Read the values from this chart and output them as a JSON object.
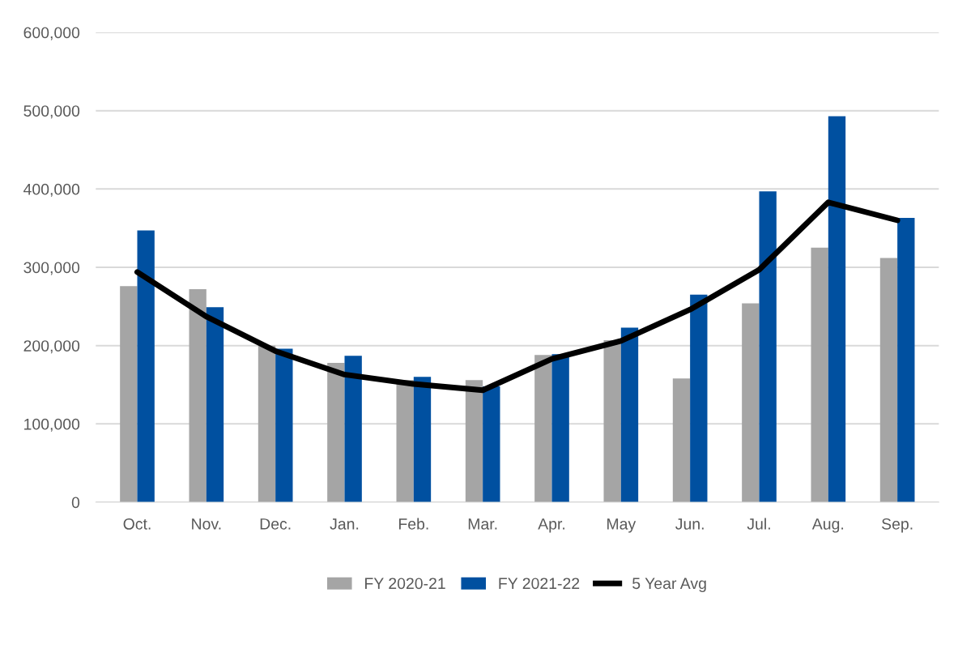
{
  "chart_data": {
    "type": "bar",
    "categories": [
      "Oct.",
      "Nov.",
      "Dec.",
      "Jan.",
      "Feb.",
      "Mar.",
      "Apr.",
      "May",
      "Jun.",
      "Jul.",
      "Aug.",
      "Sep."
    ],
    "series": [
      {
        "name": "FY 2020-21",
        "color": "#a5a5a5",
        "values": [
          276000,
          272000,
          200000,
          178000,
          156000,
          156000,
          188000,
          207000,
          158000,
          254000,
          325000,
          312000
        ]
      },
      {
        "name": "FY 2021-22",
        "color": "#0050a0",
        "values": [
          347000,
          249000,
          196000,
          187000,
          160000,
          148000,
          189000,
          223000,
          265000,
          397000,
          493000,
          363000
        ]
      },
      {
        "name": "5 Year Avg",
        "type": "line",
        "color": "#000000",
        "values": [
          294000,
          237000,
          193000,
          163000,
          151000,
          143000,
          183000,
          206000,
          246000,
          297000,
          383000,
          360000
        ]
      }
    ],
    "ylim": [
      0,
      600000
    ],
    "yticks": [
      {
        "value": 0,
        "label": "0"
      },
      {
        "value": 100000,
        "label": "100,000"
      },
      {
        "value": 200000,
        "label": "200,000"
      },
      {
        "value": 300000,
        "label": "300,000"
      },
      {
        "value": 400000,
        "label": "400,000"
      },
      {
        "value": 500000,
        "label": "500,000"
      },
      {
        "value": 600000,
        "label": "600,000"
      }
    ],
    "grid": "y",
    "legend": "bottom",
    "marker": "none",
    "line_style": "solid"
  }
}
